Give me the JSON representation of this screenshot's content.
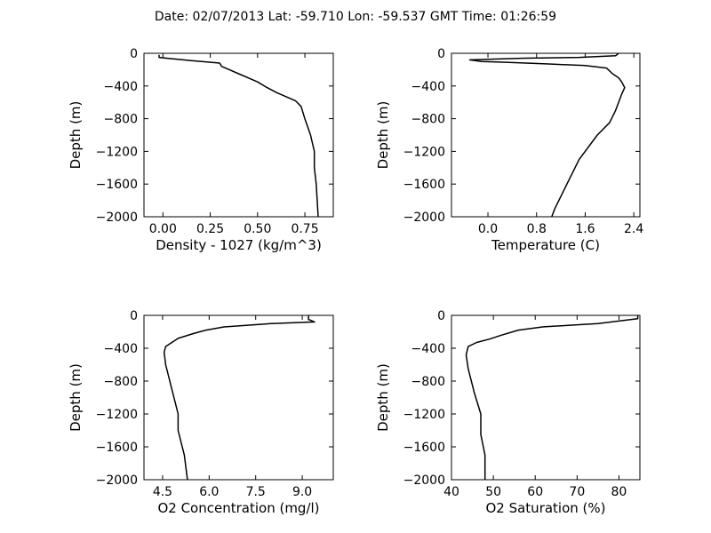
{
  "chart_data": {
    "type": "line",
    "title": "Date: 02/07/2013  Lat:  -59.710 Lon:  -59.537  GMT Time: 01:26:59",
    "grid": false,
    "panels": [
      {
        "id": "density",
        "xlabel": "Density - 1027 (kg/m^3)",
        "ylabel": "Depth (m)",
        "xlim": [
          -0.1,
          0.9
        ],
        "ylim": [
          -2000,
          0
        ],
        "xticks": [
          0.0,
          0.25,
          0.5,
          0.75
        ],
        "xtick_labels": [
          "0.00",
          "0.25",
          "0.50",
          "0.75"
        ],
        "yticks": [
          0,
          -400,
          -800,
          -1200,
          -1600,
          -2000
        ],
        "ytick_labels": [
          "0",
          "−400",
          "−800",
          "−1200",
          "−1600",
          "−2000"
        ],
        "series": [
          {
            "x": [
              -0.02,
              -0.02,
              0.0,
              0.15,
              0.3,
              0.31,
              0.35,
              0.4,
              0.45,
              0.5,
              0.55,
              0.6,
              0.65,
              0.7,
              0.73,
              0.75,
              0.78,
              0.8,
              0.8,
              0.81,
              0.82
            ],
            "y": [
              -20,
              -50,
              -55,
              -90,
              -120,
              -160,
              -200,
              -250,
              -300,
              -350,
              -420,
              -480,
              -530,
              -580,
              -650,
              -800,
              -1000,
              -1200,
              -1400,
              -1600,
              -2000
            ]
          }
        ]
      },
      {
        "id": "temperature",
        "xlabel": "Temperature (C)",
        "ylabel": "Depth (m)",
        "xlim": [
          -0.6,
          2.5
        ],
        "ylim": [
          -2000,
          0
        ],
        "xticks": [
          0.0,
          0.8,
          1.6,
          2.4
        ],
        "xtick_labels": [
          "0.0",
          "0.8",
          "1.6",
          "2.4"
        ],
        "yticks": [
          0,
          -400,
          -800,
          -1200,
          -1600,
          -2000
        ],
        "ytick_labels": [
          "0",
          "−400",
          "−800",
          "−1200",
          "−1600",
          "−2000"
        ],
        "series": [
          {
            "x": [
              2.15,
              2.1,
              1.5,
              0.6,
              -0.3,
              -0.1,
              0.3,
              1.0,
              1.6,
              1.95,
              2.05,
              2.15,
              2.2,
              2.25,
              2.2,
              2.1,
              2.0,
              1.8,
              1.5,
              1.3,
              1.1,
              1.05
            ],
            "y": [
              0,
              -30,
              -50,
              -60,
              -80,
              -100,
              -110,
              -130,
              -150,
              -180,
              -250,
              -300,
              -350,
              -420,
              -500,
              -700,
              -850,
              -1000,
              -1300,
              -1600,
              -1900,
              -2000
            ]
          }
        ]
      },
      {
        "id": "o2-concentration",
        "xlabel": "O2 Concentration (mg/l)",
        "ylabel": "Depth (m)",
        "xlim": [
          3.9,
          10.0
        ],
        "ylim": [
          -2000,
          0
        ],
        "xticks": [
          4.5,
          6.0,
          7.5,
          9.0
        ],
        "xtick_labels": [
          "4.5",
          "6.0",
          "7.5",
          "9.0"
        ],
        "yticks": [
          0,
          -400,
          -800,
          -1200,
          -1600,
          -2000
        ],
        "ytick_labels": [
          "0",
          "−400",
          "−800",
          "−1200",
          "−1600",
          "−2000"
        ],
        "series": [
          {
            "x": [
              9.2,
              9.2,
              9.4,
              8.0,
              6.5,
              5.9,
              5.5,
              5.0,
              4.8,
              4.6,
              4.55,
              4.6,
              4.8,
              5.0,
              5.0,
              5.2,
              5.3
            ],
            "y": [
              0,
              -50,
              -80,
              -100,
              -140,
              -180,
              -220,
              -280,
              -330,
              -380,
              -450,
              -600,
              -900,
              -1200,
              -1400,
              -1700,
              -2000
            ]
          }
        ]
      },
      {
        "id": "o2-saturation",
        "xlabel": "O2 Saturation (%)",
        "ylabel": "Depth (m)",
        "xlim": [
          40,
          85
        ],
        "ylim": [
          -2000,
          0
        ],
        "xticks": [
          40,
          50,
          60,
          70,
          80
        ],
        "xtick_labels": [
          "40",
          "50",
          "60",
          "70",
          "80"
        ],
        "yticks": [
          0,
          -400,
          -800,
          -1200,
          -1600,
          -2000
        ],
        "ytick_labels": [
          "0",
          "−400",
          "−800",
          "−1200",
          "−1600",
          "−2000"
        ],
        "series": [
          {
            "x": [
              84.5,
              84.5,
              75.0,
              62.0,
              56.0,
              52.0,
              49.0,
              46.0,
              44.0,
              43.5,
              44.0,
              45.5,
              47.0,
              47.0,
              48.0,
              48.0
            ],
            "y": [
              0,
              -40,
              -100,
              -140,
              -180,
              -240,
              -290,
              -330,
              -380,
              -480,
              -650,
              -950,
              -1200,
              -1450,
              -1700,
              -2000
            ]
          }
        ]
      }
    ]
  }
}
